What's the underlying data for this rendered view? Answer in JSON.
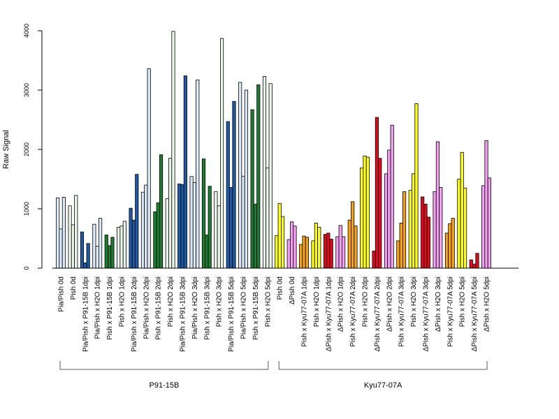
{
  "chart_data": {
    "type": "bar",
    "title": "",
    "xlabel": "",
    "ylabel": "Raw Signal",
    "ylim": [
      0,
      4000
    ],
    "y_ticks": [
      0,
      1000,
      2000,
      3000,
      4000
    ],
    "grid": false,
    "legend": "none",
    "colors": {
      "light_blue": "#dce8f7",
      "dark_blue": "#1f5aa5",
      "dark_green": "#1f7a33",
      "pale_green": "#eaf7ea",
      "yellow": "#ffff22",
      "violet": "#f3a0f0",
      "orange": "#f4a21c",
      "red": "#dd0c1e"
    },
    "categories": [
      {
        "label": "Pia/Pish 0d",
        "color": "light_blue",
        "values": [
          1185,
          660,
          1195
        ]
      },
      {
        "label": "Pish 0d",
        "color": "pale_green",
        "values": [
          1050,
          730,
          1225
        ]
      },
      {
        "label": "Pia/Pish x P91-15B 1dpi",
        "color": "dark_blue",
        "values": [
          610,
          90,
          415
        ]
      },
      {
        "label": "Pia/Pish x H2O 1dpi",
        "color": "light_blue",
        "values": [
          740,
          370,
          840
        ]
      },
      {
        "label": "Pish x P91-15B 1dpi",
        "color": "dark_green",
        "values": [
          560,
          380,
          520
        ]
      },
      {
        "label": "Pish x H2O 1dpi",
        "color": "pale_green",
        "values": [
          690,
          710,
          790
        ]
      },
      {
        "label": "Pia/Pish x P91-15B 2dpi",
        "color": "dark_blue",
        "values": [
          1010,
          810,
          1580
        ]
      },
      {
        "label": "Pia/Pish x H2O 2dpi",
        "color": "light_blue",
        "values": [
          1280,
          1400,
          3360
        ]
      },
      {
        "label": "Pish x P91-15B 2dpi",
        "color": "dark_green",
        "values": [
          950,
          1100,
          1910
        ]
      },
      {
        "label": "Pish x H2O 2dpi",
        "color": "pale_green",
        "values": [
          1170,
          1850,
          3990
        ]
      },
      {
        "label": "Pia/Pish x P91-15B 3dpi",
        "color": "dark_blue",
        "values": [
          1420,
          1410,
          3240
        ]
      },
      {
        "label": "Pia/Pish x H2O 3dpi",
        "color": "light_blue",
        "values": [
          1545,
          1440,
          3170
        ]
      },
      {
        "label": "Pish x P91-15B 3dpi",
        "color": "dark_green",
        "values": [
          1840,
          560,
          1380
        ]
      },
      {
        "label": "Pish x H2O 3dpi",
        "color": "pale_green",
        "values": [
          1290,
          1050,
          3870
        ]
      },
      {
        "label": "Pia/Pish x P91-15B 5dpi",
        "color": "dark_blue",
        "values": [
          2470,
          1360,
          2810
        ]
      },
      {
        "label": "Pia/Pish x H2O 5dpi",
        "color": "light_blue",
        "values": [
          3130,
          1550,
          3000
        ]
      },
      {
        "label": "Pish x P91-15B 5dpi",
        "color": "dark_green",
        "values": [
          2670,
          1080,
          3090
        ]
      },
      {
        "label": "Pish x H2O 5dpi",
        "color": "pale_green",
        "values": [
          3230,
          1690,
          3110
        ]
      },
      {
        "label": "Pish 0d",
        "color": "yellow",
        "values": [
          550,
          1090,
          870
        ]
      },
      {
        "label": "ΔPish 0d",
        "color": "violet",
        "values": [
          480,
          780,
          710
        ]
      },
      {
        "label": "Pish x Kyu77-07A 1dpi",
        "color": "orange",
        "values": [
          400,
          540,
          520
        ]
      },
      {
        "label": "Pish x H2O 1dpi",
        "color": "yellow",
        "values": [
          460,
          760,
          690
        ]
      },
      {
        "label": "ΔPish x Kyu77-07A 1dpi",
        "color": "red",
        "values": [
          570,
          590,
          490
        ]
      },
      {
        "label": "ΔPish x H2O 1dpi",
        "color": "violet",
        "values": [
          530,
          720,
          530
        ]
      },
      {
        "label": "Pish x Kyu77-07A 2dpi",
        "color": "orange",
        "values": [
          810,
          1120,
          710
        ]
      },
      {
        "label": "Pish x H2O 2dpi",
        "color": "yellow",
        "values": [
          1690,
          1890,
          1870
        ]
      },
      {
        "label": "ΔPish x Kyu77-07A 2dpi",
        "color": "red",
        "values": [
          290,
          2540,
          1850
        ]
      },
      {
        "label": "ΔPish x H2O 2dpi",
        "color": "violet",
        "values": [
          1590,
          1990,
          2410
        ]
      },
      {
        "label": "Pish x Kyu77-07A 3dpi",
        "color": "orange",
        "values": [
          460,
          760,
          1290
        ]
      },
      {
        "label": "Pish x H2O 3dpi",
        "color": "yellow",
        "values": [
          1310,
          1590,
          2770
        ]
      },
      {
        "label": "ΔPish x Kyu77-07A 3dpi",
        "color": "red",
        "values": [
          1200,
          1080,
          860
        ]
      },
      {
        "label": "ΔPish x H2O 3dpi",
        "color": "violet",
        "values": [
          1290,
          2130,
          1360
        ]
      },
      {
        "label": "Pish x Kyu77-07A 5dpi",
        "color": "orange",
        "values": [
          590,
          750,
          840
        ]
      },
      {
        "label": "Pish x H2O 5dpi",
        "color": "yellow",
        "values": [
          1500,
          1950,
          1350
        ]
      },
      {
        "label": "ΔPish x Kyu77-07A 5dpi",
        "color": "red",
        "values": [
          140,
          70,
          250
        ]
      },
      {
        "label": "ΔPish x H2O 5dpi",
        "color": "violet",
        "values": [
          1390,
          2150,
          1520
        ]
      }
    ],
    "groups": [
      {
        "label": "P91-15B",
        "from": 0,
        "to": 17
      },
      {
        "label": "Kyu77-07A",
        "from": 18,
        "to": 35
      }
    ]
  }
}
